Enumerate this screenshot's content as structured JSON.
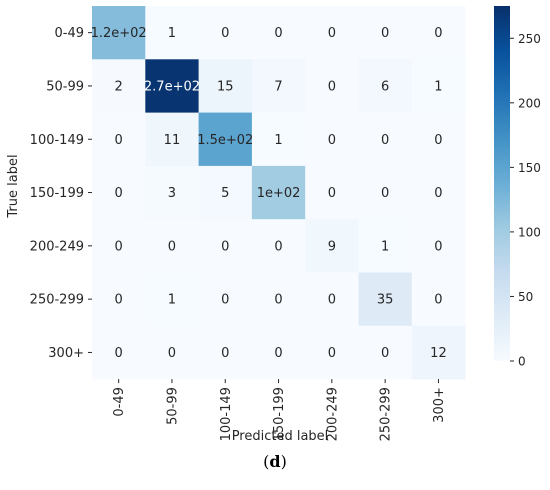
{
  "chart_data": {
    "type": "heatmap",
    "title": "",
    "xlabel": "Predicted label",
    "ylabel": "True label",
    "row_labels": [
      "0-49",
      "50-99",
      "100-149",
      "150-199",
      "200-249",
      "250-299",
      "300+"
    ],
    "col_labels": [
      "0-49",
      "50-99",
      "100-149",
      "150-199",
      "200-249",
      "250-299",
      "300+"
    ],
    "values": [
      [
        120,
        1,
        0,
        0,
        0,
        0,
        0
      ],
      [
        2,
        270,
        15,
        7,
        0,
        6,
        1
      ],
      [
        0,
        11,
        150,
        1,
        0,
        0,
        0
      ],
      [
        0,
        3,
        5,
        100,
        0,
        0,
        0
      ],
      [
        0,
        0,
        0,
        0,
        9,
        1,
        0
      ],
      [
        0,
        1,
        0,
        0,
        0,
        35,
        0
      ],
      [
        0,
        0,
        0,
        0,
        0,
        0,
        12
      ]
    ],
    "cell_labels": [
      [
        "1.2e+02",
        "1",
        "0",
        "0",
        "0",
        "0",
        "0"
      ],
      [
        "2",
        "2.7e+02",
        "15",
        "7",
        "0",
        "6",
        "1"
      ],
      [
        "0",
        "11",
        "1.5e+02",
        "1",
        "0",
        "0",
        "0"
      ],
      [
        "0",
        "3",
        "5",
        "1e+02",
        "0",
        "0",
        "0"
      ],
      [
        "0",
        "0",
        "0",
        "0",
        "9",
        "1",
        "0"
      ],
      [
        "0",
        "1",
        "0",
        "0",
        "0",
        "35",
        "0"
      ],
      [
        "0",
        "0",
        "0",
        "0",
        "0",
        "0",
        "12"
      ]
    ],
    "colormap": "Blues",
    "color_min": "#f7fbff",
    "color_max": "#08306b",
    "colorbar": {
      "range": [
        0,
        275
      ],
      "ticks": [
        0,
        50,
        100,
        150,
        200,
        250
      ],
      "tick_labels": [
        "0",
        "50",
        "100",
        "150",
        "200",
        "250"
      ]
    }
  },
  "panel": {
    "open": "(",
    "letter": "d",
    "close": ")"
  }
}
